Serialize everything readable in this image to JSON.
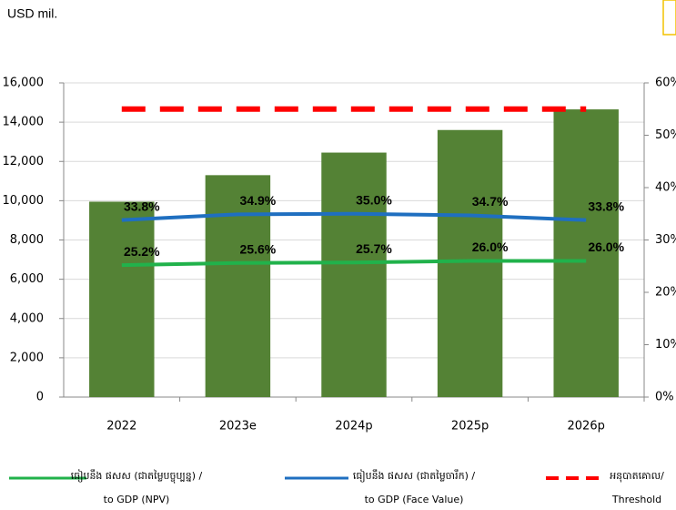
{
  "chart_data": {
    "type": "bar",
    "unit_label": "USD mil.",
    "categories": [
      "2022",
      "2023e",
      "2024p",
      "2025p",
      "2026p"
    ],
    "ylim": [
      0,
      16000
    ],
    "yticks": [
      0,
      {
        "value": 2000,
        "label": "2,000"
      },
      {
        "value": 4000,
        "label": "4,000"
      },
      {
        "value": 6000,
        "label": "6,000"
      },
      {
        "value": 8000,
        "label": "8,000"
      },
      {
        "value": 10000,
        "label": "10,000"
      },
      {
        "value": 12000,
        "label": "12,000"
      },
      {
        "value": 14000,
        "label": "14,000"
      },
      {
        "value": 16000,
        "label": "16,000"
      }
    ],
    "y2lim": [
      0,
      60
    ],
    "y2ticks": [
      {
        "value": 0,
        "label": "0%"
      },
      {
        "value": 10,
        "label": "10%"
      },
      {
        "value": 20,
        "label": "20%"
      },
      {
        "value": 30,
        "label": "30%"
      },
      {
        "value": 40,
        "label": "40%"
      },
      {
        "value": 50,
        "label": "50%"
      },
      {
        "value": 60,
        "label": "60%"
      }
    ],
    "grid": true,
    "series": [
      {
        "type": "bar",
        "color": "#548235",
        "values": [
          9950,
          11300,
          12450,
          13600,
          14650
        ]
      },
      {
        "type": "line",
        "axis": "y2",
        "name": [
          "ធៀបនឹង ផសស (ជាតម្លៃបច្ចុប្បន្ន) /",
          "to GDP (NPV)"
        ],
        "color": "#21b24b",
        "values": [
          25.2,
          25.6,
          25.7,
          26.0,
          26.0
        ],
        "value_labels": [
          "25.2%",
          "25.6%",
          "25.7%",
          "26.0%",
          "26.0%"
        ]
      },
      {
        "type": "line",
        "axis": "y2",
        "name": [
          "ធៀបនឹង ផសស (ជាតម្លៃចារឹក) /",
          "to GDP (Face Value)"
        ],
        "color": "#1f6fc0",
        "values": [
          33.8,
          34.9,
          35.0,
          34.7,
          33.8
        ],
        "value_labels": [
          "33.8%",
          "34.9%",
          "35.0%",
          "34.7%",
          "33.8%"
        ]
      },
      {
        "type": "line",
        "axis": "y2",
        "dashed": true,
        "name": [
          "អនុបាតគោល/",
          "Threshold"
        ],
        "color": "#ff0000",
        "values": [
          55,
          55,
          55,
          55,
          55
        ]
      }
    ]
  }
}
